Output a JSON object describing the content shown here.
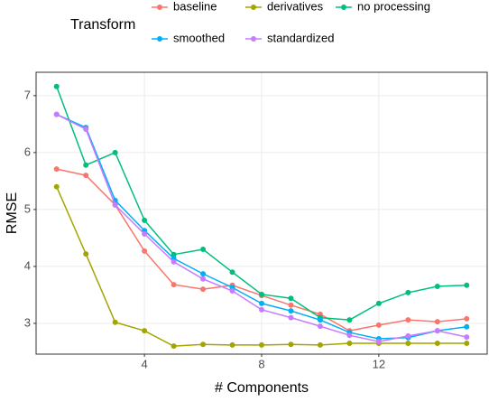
{
  "chart_data": {
    "type": "line",
    "x_label": "# Components",
    "y_label": "RMSE",
    "legend_title": "Transform",
    "legend": "top",
    "grid": true,
    "x": [
      1,
      2,
      3,
      4,
      5,
      6,
      7,
      8,
      9,
      10,
      11,
      12,
      13,
      14,
      15
    ],
    "xlim": [
      0.3,
      15.7
    ],
    "xticks": [
      4,
      8,
      12
    ],
    "ylim": [
      2.46,
      7.41
    ],
    "yticks": [
      3,
      4,
      5,
      6,
      7
    ],
    "series": [
      {
        "name": "baseline",
        "color": "#F8766D",
        "values": [
          5.71,
          5.6,
          5.08,
          4.27,
          3.68,
          3.6,
          3.67,
          3.49,
          3.32,
          3.16,
          2.87,
          2.97,
          3.06,
          3.03,
          3.08
        ]
      },
      {
        "name": "derivatives",
        "color": "#A3A500",
        "values": [
          5.4,
          4.22,
          3.02,
          2.87,
          2.6,
          2.63,
          2.62,
          2.62,
          2.63,
          2.62,
          2.65,
          2.65,
          2.65,
          2.65,
          2.65
        ]
      },
      {
        "name": "no processing",
        "color": "#00BF7D",
        "values": [
          7.16,
          5.78,
          6.0,
          4.81,
          4.21,
          4.3,
          3.9,
          3.51,
          3.44,
          3.1,
          3.06,
          3.35,
          3.54,
          3.65,
          3.67
        ]
      },
      {
        "name": "smoothed",
        "color": "#00B0F6",
        "values": [
          6.67,
          6.44,
          5.16,
          4.63,
          4.14,
          3.87,
          3.63,
          3.35,
          3.22,
          3.06,
          2.84,
          2.73,
          2.75,
          2.87,
          2.94
        ]
      },
      {
        "name": "standardized",
        "color": "#C77CFF",
        "values": [
          6.67,
          6.41,
          5.08,
          4.57,
          4.08,
          3.78,
          3.57,
          3.24,
          3.1,
          2.95,
          2.79,
          2.68,
          2.78,
          2.87,
          2.76
        ]
      }
    ]
  }
}
